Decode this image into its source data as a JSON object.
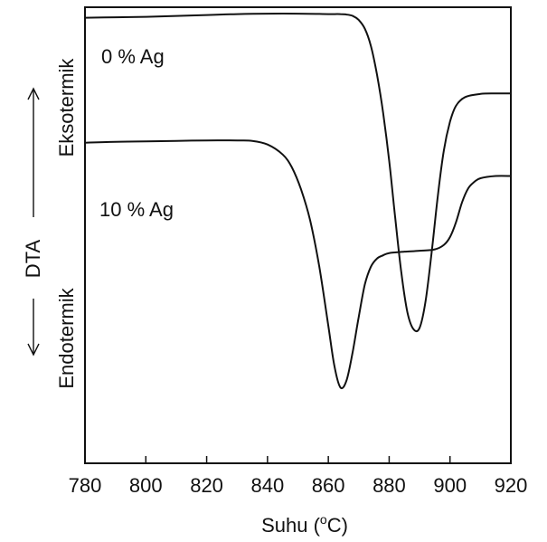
{
  "chart_data": {
    "type": "line",
    "title": "",
    "xlabel": "Suhu (°C)",
    "xlabel_parts": {
      "before": "Suhu (",
      "superscript": "o",
      "after": "C)"
    },
    "ylabel": "DTA",
    "ylabel_up": "Eksotermik",
    "ylabel_down": "Endotermik",
    "xlim": [
      780,
      920
    ],
    "ylim": [
      0,
      1
    ],
    "x_ticks": [
      780,
      800,
      820,
      840,
      860,
      880,
      900,
      920
    ],
    "x_tick_labels": [
      "780",
      "800",
      "820",
      "840",
      "860",
      "880",
      "900",
      "920"
    ],
    "y_ticks_labeled": false,
    "grid": false,
    "legend": "none",
    "series": [
      {
        "name": "0 % Ag",
        "x": [
          780,
          790,
          800,
          810,
          820,
          830,
          840,
          850,
          860,
          864,
          866,
          868,
          870,
          872,
          874,
          876,
          878,
          880,
          882,
          884,
          886,
          888,
          890,
          892,
          894,
          896,
          898,
          900,
          902,
          905,
          910,
          915,
          920
        ],
        "y": [
          0.977,
          0.978,
          0.979,
          0.981,
          0.983,
          0.985,
          0.986,
          0.986,
          0.985,
          0.985,
          0.984,
          0.981,
          0.972,
          0.953,
          0.915,
          0.852,
          0.769,
          0.664,
          0.537,
          0.418,
          0.331,
          0.294,
          0.297,
          0.357,
          0.464,
          0.587,
          0.687,
          0.749,
          0.784,
          0.803,
          0.81,
          0.811,
          0.811
        ]
      },
      {
        "name": "10 % Ag",
        "x": [
          780,
          790,
          800,
          810,
          820,
          830,
          835,
          840,
          845,
          848,
          851,
          854,
          857,
          860,
          862,
          864,
          866,
          868,
          870,
          872,
          874,
          876,
          878,
          880,
          885,
          890,
          895,
          898,
          900,
          902,
          904,
          906,
          908,
          910,
          915,
          920
        ],
        "y": [
          0.703,
          0.705,
          0.706,
          0.707,
          0.708,
          0.708,
          0.707,
          0.699,
          0.677,
          0.649,
          0.601,
          0.533,
          0.432,
          0.302,
          0.213,
          0.166,
          0.182,
          0.244,
          0.321,
          0.392,
          0.431,
          0.449,
          0.456,
          0.461,
          0.464,
          0.466,
          0.469,
          0.479,
          0.496,
          0.529,
          0.573,
          0.603,
          0.617,
          0.625,
          0.63,
          0.63
        ]
      }
    ],
    "annotations": [
      {
        "text": "0 % Ag",
        "series": "0 % Ag"
      },
      {
        "text": "10 % Ag",
        "series": "10 % Ag"
      }
    ]
  }
}
